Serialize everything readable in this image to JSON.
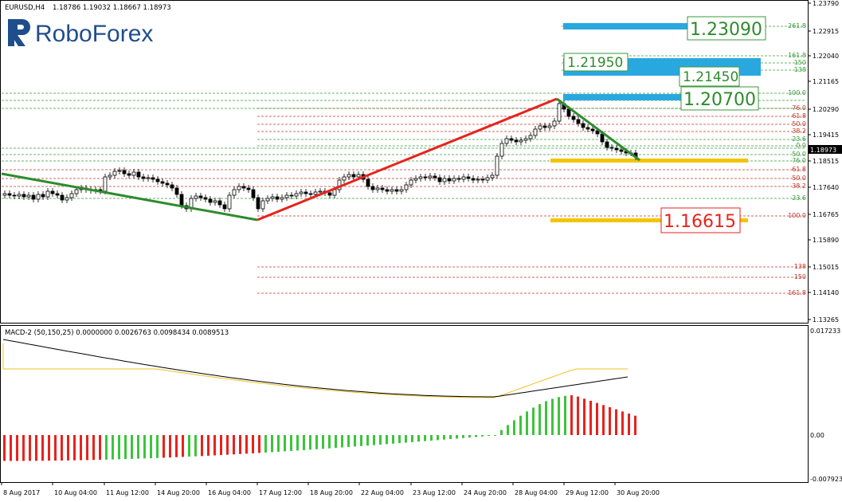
{
  "header": {
    "symbol": "EURUSD,H4",
    "ohlc": "1.18786 1.19032 1.18667 1.18973",
    "logo": "RoboForex"
  },
  "price_axis": {
    "labels": [
      "1.23790",
      "1.22915",
      "1.22040",
      "1.21165",
      "1.20290",
      "1.19415",
      "1.18515",
      "1.17640",
      "1.16765",
      "1.15890",
      "1.15015",
      "1.14140",
      "1.13265"
    ],
    "current_price": "1.18973"
  },
  "time_axis": {
    "labels": [
      "8 Aug 2017",
      "10 Aug 04:00",
      "11 Aug 12:00",
      "14 Aug 20:00",
      "16 Aug 04:00",
      "17 Aug 12:00",
      "18 Aug 20:00",
      "22 Aug 04:00",
      "23 Aug 12:00",
      "24 Aug 20:00",
      "28 Aug 04:00",
      "29 Aug 12:00",
      "30 Aug 20:00"
    ]
  },
  "fib_upper": [
    "261.8",
    "161.8",
    "150",
    "138",
    "100.0",
    "76.0",
    "61.8",
    "50.0",
    "38.2",
    "23.6",
    "0.0"
  ],
  "fib_lower": [
    "76.0",
    "61.8",
    "50.0",
    "38.2",
    "23.6",
    "100.0",
    "138",
    "150",
    "161.8"
  ],
  "fib_mid": [
    "50.0"
  ],
  "targets": {
    "t1": "1.23090",
    "t2": "1.21950",
    "t3": "1.21450",
    "t4": "1.20700",
    "t5": "1.16615"
  },
  "macd": {
    "title": "MACD-2 (50,150,25) 0.0000000 0.0026763 0.0098434 0.0089513",
    "axis": [
      "0.017233",
      "0.00",
      "-0.007923"
    ]
  },
  "colors": {
    "up_trend": "#e8221c",
    "down_trend": "#2e8b2e",
    "target_blue": "#29a8e0",
    "target_yellow": "#f2c500",
    "hist_red": "#e8221c",
    "hist_green": "#3cc43c"
  }
}
